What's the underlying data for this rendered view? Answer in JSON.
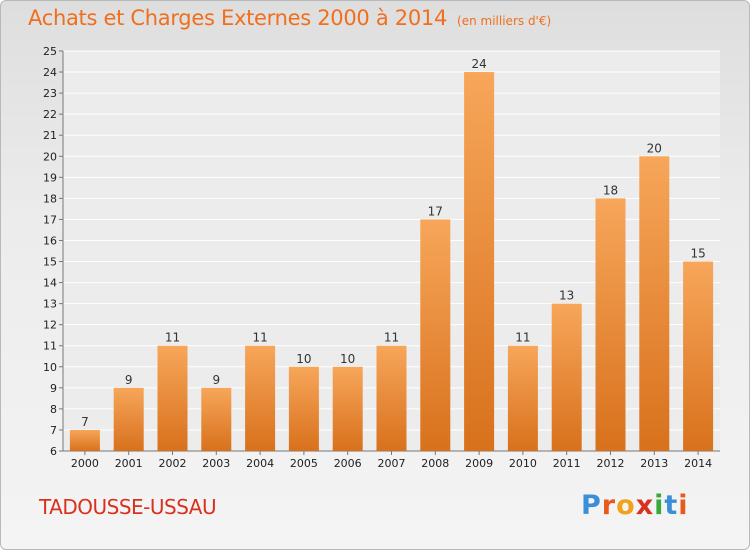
{
  "title": "Achats et Charges Externes 2000 à 2014",
  "subtitle": "(en milliers d'€)",
  "commune": "TADOUSSE-USSAU",
  "logo": {
    "letters": [
      "P",
      "r",
      "o",
      "x",
      "i",
      "t",
      "i"
    ],
    "colors": [
      "#3a8fd6",
      "#e85a1c",
      "#f2a11a",
      "#d8321f",
      "#3aa83a",
      "#3a8fd6",
      "#e85a1c"
    ]
  },
  "colors": {
    "bar_light": "#f7a65a",
    "bar_dark": "#d8711c",
    "title": "#f06f1e",
    "commune": "#d8321f"
  },
  "chart_data": {
    "type": "bar",
    "categories": [
      "2000",
      "2001",
      "2002",
      "2003",
      "2004",
      "2005",
      "2006",
      "2007",
      "2008",
      "2009",
      "2010",
      "2011",
      "2012",
      "2013",
      "2014"
    ],
    "values": [
      7,
      9,
      11,
      9,
      11,
      10,
      10,
      11,
      17,
      24,
      11,
      13,
      18,
      20,
      15
    ],
    "ylim": [
      6,
      25
    ],
    "yticks": [
      6,
      7,
      8,
      9,
      10,
      11,
      12,
      13,
      14,
      15,
      16,
      17,
      18,
      19,
      20,
      21,
      22,
      23,
      24,
      25
    ],
    "grid": true,
    "xlabel": "",
    "ylabel": ""
  }
}
